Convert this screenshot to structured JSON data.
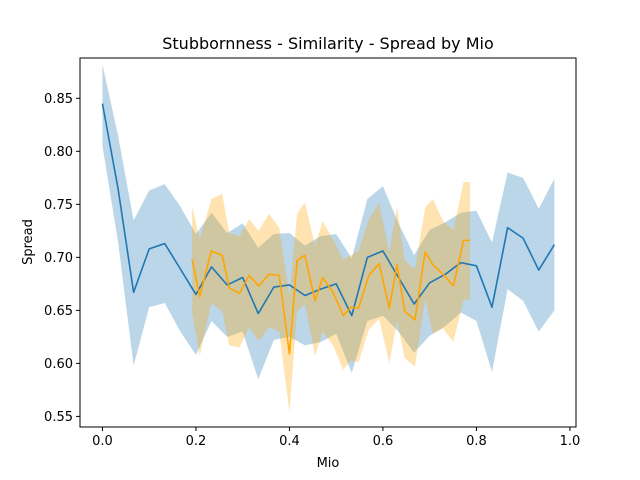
{
  "chart_data": {
    "type": "line",
    "title": "Stubbornness - Similarity - Spread by Mio",
    "xlabel": "Mio",
    "ylabel": "Spread",
    "xlim": [
      -0.048,
      1.013
    ],
    "ylim": [
      0.54,
      0.888
    ],
    "xticks": [
      0.0,
      0.2,
      0.4,
      0.6,
      0.8,
      1.0
    ],
    "xtick_labels": [
      "0.0",
      "0.2",
      "0.4",
      "0.6",
      "0.8",
      "1.0"
    ],
    "yticks": [
      0.55,
      0.6,
      0.65,
      0.7,
      0.75,
      0.8,
      0.85
    ],
    "ytick_labels": [
      "0.55",
      "0.60",
      "0.65",
      "0.70",
      "0.75",
      "0.80",
      "0.85"
    ],
    "grid": false,
    "series": [
      {
        "color": "#1f77b4",
        "band_color": "#1f77b4",
        "x": [
          0.0,
          0.0333,
          0.0667,
          0.1,
          0.1333,
          0.1667,
          0.2,
          0.2333,
          0.2667,
          0.3,
          0.3333,
          0.3667,
          0.4,
          0.4333,
          0.4667,
          0.5,
          0.5333,
          0.5667,
          0.6,
          0.6333,
          0.6667,
          0.7,
          0.7333,
          0.7667,
          0.8,
          0.8333,
          0.8667,
          0.9,
          0.9333,
          0.9667
        ],
        "y": [
          0.845,
          0.765,
          0.667,
          0.708,
          0.713,
          0.689,
          0.665,
          0.691,
          0.674,
          0.681,
          0.647,
          0.672,
          0.674,
          0.664,
          0.67,
          0.675,
          0.645,
          0.7,
          0.706,
          0.681,
          0.656,
          0.676,
          0.684,
          0.695,
          0.692,
          0.653,
          0.728,
          0.718,
          0.688,
          0.712
        ],
        "lower": [
          0.805,
          0.715,
          0.598,
          0.653,
          0.657,
          0.63,
          0.608,
          0.64,
          0.625,
          0.63,
          0.585,
          0.622,
          0.625,
          0.617,
          0.62,
          0.628,
          0.591,
          0.64,
          0.645,
          0.63,
          0.61,
          0.626,
          0.635,
          0.648,
          0.64,
          0.592,
          0.67,
          0.659,
          0.63,
          0.65
        ],
        "upper": [
          0.882,
          0.815,
          0.735,
          0.763,
          0.769,
          0.748,
          0.722,
          0.742,
          0.723,
          0.732,
          0.709,
          0.722,
          0.723,
          0.711,
          0.72,
          0.722,
          0.699,
          0.755,
          0.767,
          0.732,
          0.702,
          0.726,
          0.733,
          0.742,
          0.744,
          0.714,
          0.78,
          0.775,
          0.746,
          0.774
        ]
      },
      {
        "color": "#ffa500",
        "band_color": "#ffa500",
        "x": [
          0.1918,
          0.2082,
          0.2329,
          0.2562,
          0.2712,
          0.2932,
          0.3137,
          0.3342,
          0.3562,
          0.3781,
          0.4,
          0.4164,
          0.4329,
          0.4548,
          0.4712,
          0.4932,
          0.5151,
          0.5315,
          0.5479,
          0.5699,
          0.5918,
          0.6137,
          0.6301,
          0.6466,
          0.6685,
          0.6904,
          0.7068,
          0.7288,
          0.7507,
          0.7726,
          0.7863
        ],
        "y": [
          0.698,
          0.663,
          0.706,
          0.702,
          0.671,
          0.666,
          0.683,
          0.673,
          0.684,
          0.683,
          0.609,
          0.697,
          0.702,
          0.659,
          0.681,
          0.667,
          0.645,
          0.653,
          0.652,
          0.683,
          0.694,
          0.652,
          0.693,
          0.649,
          0.641,
          0.705,
          0.693,
          0.684,
          0.673,
          0.716,
          0.716
        ],
        "lower": [
          0.648,
          0.607,
          0.657,
          0.649,
          0.617,
          0.615,
          0.634,
          0.621,
          0.634,
          0.63,
          0.554,
          0.649,
          0.656,
          0.607,
          0.63,
          0.617,
          0.594,
          0.603,
          0.601,
          0.632,
          0.642,
          0.6,
          0.64,
          0.605,
          0.597,
          0.66,
          0.628,
          0.633,
          0.62,
          0.66,
          0.66
        ],
        "upper": [
          0.748,
          0.717,
          0.755,
          0.76,
          0.723,
          0.72,
          0.736,
          0.725,
          0.741,
          0.728,
          0.664,
          0.741,
          0.752,
          0.711,
          0.734,
          0.717,
          0.698,
          0.702,
          0.706,
          0.736,
          0.751,
          0.705,
          0.748,
          0.697,
          0.689,
          0.747,
          0.755,
          0.734,
          0.726,
          0.771,
          0.771
        ]
      }
    ]
  }
}
